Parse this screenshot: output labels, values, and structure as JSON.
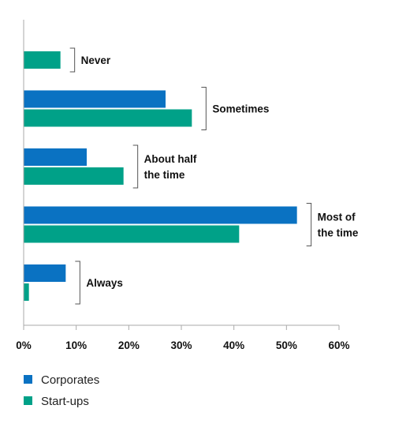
{
  "chart_data": {
    "type": "bar",
    "orientation": "horizontal",
    "categories": [
      "Never",
      "Sometimes",
      "About half the time",
      "Most of the time",
      "Always"
    ],
    "category_label_lines": [
      [
        "Never"
      ],
      [
        "Sometimes"
      ],
      [
        "About half",
        "the time"
      ],
      [
        "Most of",
        "the time"
      ],
      [
        "Always"
      ]
    ],
    "series": [
      {
        "name": "Corporates",
        "color": "#0a72c2",
        "values": [
          null,
          27,
          12,
          52,
          8
        ]
      },
      {
        "name": "Start-ups",
        "color": "#00a188",
        "values": [
          7,
          32,
          19,
          41,
          1
        ]
      }
    ],
    "xlim": [
      0,
      60
    ],
    "xticks": [
      0,
      10,
      20,
      30,
      40,
      50,
      60
    ],
    "xtick_labels": [
      "0%",
      "10%",
      "20%",
      "30%",
      "40%",
      "50%",
      "60%"
    ],
    "legend_placement": "bottom-left",
    "grid": false
  }
}
